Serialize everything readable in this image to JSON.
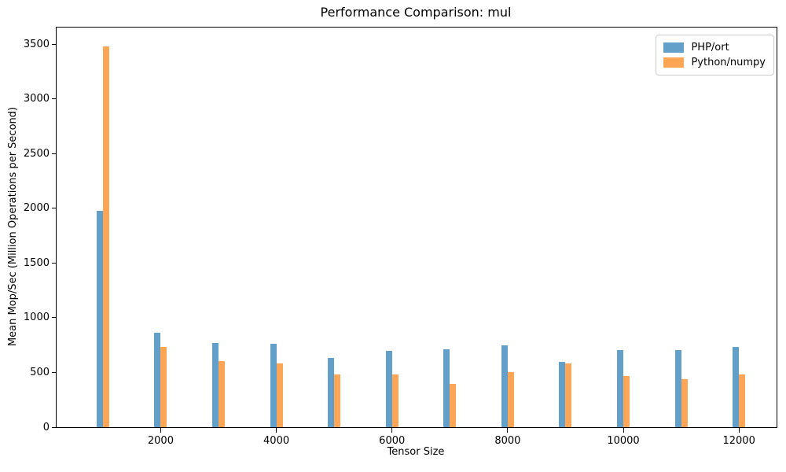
{
  "figure": {
    "title": "Performance Comparison: mul",
    "xlabel": "Tensor Size",
    "ylabel": "Mean Mop/Sec (Million Operations per Second)"
  },
  "legend": {
    "entries": [
      "PHP/ort",
      "Python/numpy"
    ]
  },
  "colors": {
    "php_ort": "#62A0CA",
    "python_numpy": "#FFA556",
    "axis": "#000000",
    "legend_border": "#cccccc"
  },
  "chart_data": {
    "type": "bar",
    "title": "Performance Comparison: mul",
    "xlabel": "Tensor Size",
    "ylabel": "Mean Mop/Sec (Million Operations per Second)",
    "categories": [
      1000,
      2000,
      3000,
      4000,
      5000,
      6000,
      7000,
      8000,
      9000,
      10000,
      11000,
      12000
    ],
    "series": [
      {
        "name": "PHP/ort",
        "color": "#62A0CA",
        "values": [
          1979,
          863,
          771,
          764,
          633,
          696,
          715,
          751,
          597,
          706,
          704,
          737
        ]
      },
      {
        "name": "Python/numpy",
        "color": "#FFA556",
        "values": [
          3478,
          735,
          605,
          586,
          484,
          485,
          399,
          505,
          581,
          470,
          441,
          484
        ]
      }
    ],
    "xticks": [
      2000,
      4000,
      6000,
      8000,
      10000,
      12000
    ],
    "yticks": [
      0,
      500,
      1000,
      1500,
      2000,
      2500,
      3000,
      3500
    ],
    "xlim": [
      200,
      12650
    ],
    "ylim": [
      0,
      3654
    ],
    "grid": false,
    "legend_position": "upper right"
  }
}
